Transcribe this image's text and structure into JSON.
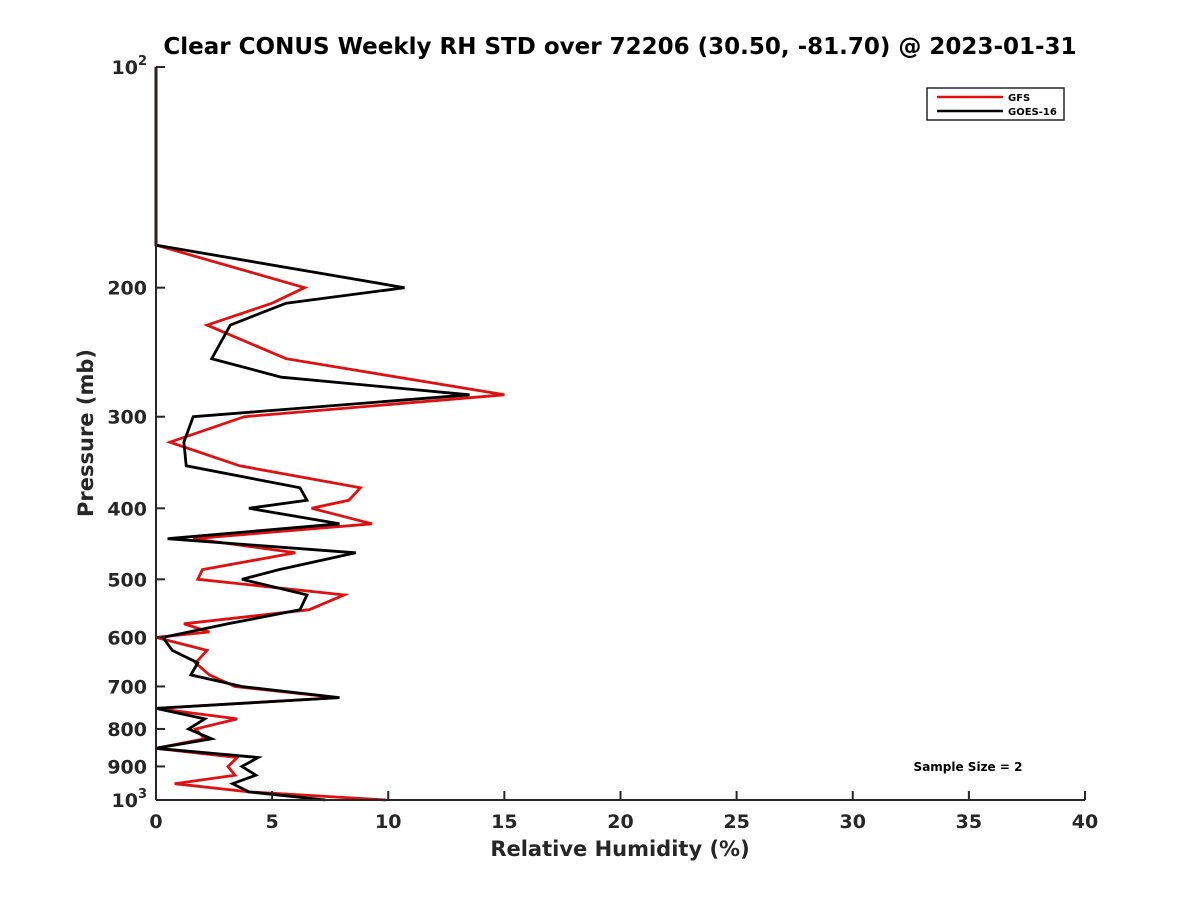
{
  "chart_data": {
    "type": "line",
    "title": "Clear CONUS Weekly RH STD over 72206 (30.50, -81.70) @ 2023-01-31",
    "xlabel": "Relative Humidity (%)",
    "ylabel": "Pressure (mb)",
    "xlim": [
      0,
      40
    ],
    "ylim": [
      1000,
      100
    ],
    "yscale": "log",
    "xticks": [
      "0",
      "5",
      "10",
      "15",
      "20",
      "25",
      "30",
      "35",
      "40"
    ],
    "yticks": [
      {
        "value": 100,
        "base": "10",
        "exp": "2"
      },
      {
        "value": 200,
        "label": "200"
      },
      {
        "value": 300,
        "label": "300"
      },
      {
        "value": 400,
        "label": "400"
      },
      {
        "value": 500,
        "label": "500"
      },
      {
        "value": 600,
        "label": "600"
      },
      {
        "value": 700,
        "label": "700"
      },
      {
        "value": 800,
        "label": "800"
      },
      {
        "value": 900,
        "label": "900"
      },
      {
        "value": 1000,
        "base": "10",
        "exp": "3"
      }
    ],
    "legend": {
      "placement": "top-right"
    },
    "annotation": "Sample Size = 2",
    "series": [
      {
        "name": "GFS",
        "color": "#e01010",
        "points": [
          [
            0,
            100
          ],
          [
            0,
            175
          ],
          [
            6.4,
            200
          ],
          [
            5.0,
            210
          ],
          [
            2.2,
            225
          ],
          [
            5.6,
            250
          ],
          [
            15.0,
            280
          ],
          [
            3.8,
            300
          ],
          [
            0.6,
            325
          ],
          [
            3.6,
            350
          ],
          [
            8.8,
            375
          ],
          [
            8.3,
            390
          ],
          [
            6.7,
            400
          ],
          [
            9.3,
            420
          ],
          [
            1.6,
            440
          ],
          [
            6.0,
            460
          ],
          [
            2.0,
            485
          ],
          [
            1.8,
            500
          ],
          [
            8.1,
            525
          ],
          [
            6.6,
            550
          ],
          [
            1.2,
            575
          ],
          [
            2.3,
            590
          ],
          [
            0.0,
            600
          ],
          [
            2.2,
            625
          ],
          [
            1.7,
            650
          ],
          [
            2.3,
            675
          ],
          [
            3.4,
            700
          ],
          [
            7.8,
            725
          ],
          [
            0.0,
            750
          ],
          [
            3.5,
            775
          ],
          [
            1.7,
            800
          ],
          [
            2.1,
            825
          ],
          [
            0.0,
            850
          ],
          [
            3.5,
            875
          ],
          [
            3.1,
            900
          ],
          [
            3.4,
            925
          ],
          [
            0.8,
            950
          ],
          [
            4.0,
            975
          ],
          [
            9.9,
            1000
          ]
        ]
      },
      {
        "name": "GOES-16",
        "color": "#000000",
        "points": [
          [
            0,
            100
          ],
          [
            0,
            175
          ],
          [
            10.7,
            200
          ],
          [
            5.6,
            210
          ],
          [
            3.2,
            225
          ],
          [
            2.4,
            250
          ],
          [
            5.4,
            265
          ],
          [
            13.5,
            280
          ],
          [
            1.6,
            300
          ],
          [
            1.2,
            325
          ],
          [
            1.3,
            350
          ],
          [
            6.2,
            375
          ],
          [
            6.5,
            390
          ],
          [
            4.0,
            400
          ],
          [
            7.9,
            420
          ],
          [
            0.5,
            440
          ],
          [
            8.6,
            460
          ],
          [
            5.3,
            485
          ],
          [
            3.7,
            500
          ],
          [
            6.5,
            525
          ],
          [
            6.2,
            550
          ],
          [
            3.1,
            575
          ],
          [
            0.3,
            600
          ],
          [
            0.7,
            625
          ],
          [
            1.8,
            650
          ],
          [
            1.5,
            675
          ],
          [
            3.7,
            700
          ],
          [
            7.9,
            725
          ],
          [
            0.0,
            750
          ],
          [
            2.1,
            775
          ],
          [
            1.4,
            800
          ],
          [
            2.4,
            825
          ],
          [
            0.0,
            850
          ],
          [
            4.4,
            875
          ],
          [
            3.7,
            900
          ],
          [
            4.3,
            925
          ],
          [
            3.3,
            950
          ],
          [
            4.0,
            975
          ],
          [
            7.3,
            1000
          ]
        ]
      }
    ]
  }
}
